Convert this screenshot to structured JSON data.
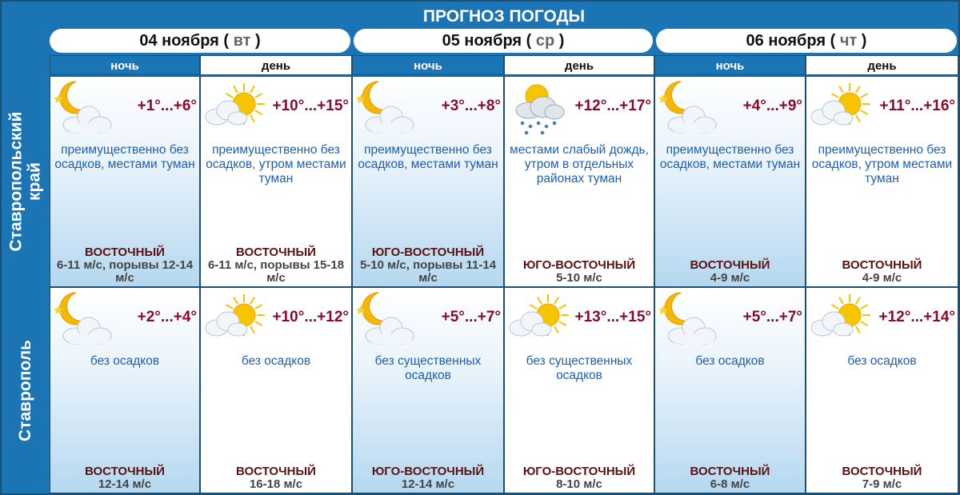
{
  "title": "ПРОГНОЗ ПОГОДЫ",
  "days": [
    {
      "date": "04 ноября",
      "weekday": "вт"
    },
    {
      "date": "05 ноября",
      "weekday": "ср"
    },
    {
      "date": "06 ноября",
      "weekday": "чт"
    }
  ],
  "periods": [
    "ночь",
    "день",
    "ночь",
    "день",
    "ночь",
    "день"
  ],
  "rows": [
    {
      "label": "Ставропольский край",
      "label1": "Ставропольский",
      "label2": "край",
      "cells": [
        {
          "icon": "moon-cloud",
          "temp": "+1°...+6°",
          "desc": "преимущественно без осадков, местами туман",
          "wind_dir": "ВОСТОЧНЫЙ",
          "wind_speed": "6-11 м/с, порывы 12-14 м/с"
        },
        {
          "icon": "sun-cloud",
          "temp": "+10°...+15°",
          "desc": "преимущественно без осадков, утром местами туман",
          "wind_dir": "ВОСТОЧНЫЙ",
          "wind_speed": "6-11 м/с, порывы 15-18 м/с"
        },
        {
          "icon": "moon-cloud",
          "temp": "+3°...+8°",
          "desc": "преимущественно без осадков, местами туман",
          "wind_dir": "ЮГО-ВОСТОЧНЫЙ",
          "wind_speed": "5-10 м/с, порывы 11-14 м/с"
        },
        {
          "icon": "sun-cloud-rain",
          "temp": "+12°...+17°",
          "desc": "местами слабый дождь, утром в отдельных районах туман",
          "wind_dir": "ЮГО-ВОСТОЧНЫЙ",
          "wind_speed": "5-10 м/с"
        },
        {
          "icon": "moon-cloud",
          "temp": "+4°...+9°",
          "desc": "преимущественно без осадков, местами туман",
          "wind_dir": "ВОСТОЧНЫЙ",
          "wind_speed": "4-9 м/с"
        },
        {
          "icon": "sun-cloud",
          "temp": "+11°...+16°",
          "desc": "преимущественно без осадков, утром местами туман",
          "wind_dir": "ВОСТОЧНЫЙ",
          "wind_speed": "4-9 м/с"
        }
      ]
    },
    {
      "label": "Ставрополь",
      "label1": "Ставрополь",
      "label2": "",
      "cells": [
        {
          "icon": "moon-cloud",
          "temp": "+2°...+4°",
          "desc": "без осадков",
          "wind_dir": "ВОСТОЧНЫЙ",
          "wind_speed": "12-14 м/с"
        },
        {
          "icon": "sun-cloud",
          "temp": "+10°...+12°",
          "desc": "без осадков",
          "wind_dir": "ВОСТОЧНЫЙ",
          "wind_speed": "16-18 м/с"
        },
        {
          "icon": "moon-cloud",
          "temp": "+5°...+7°",
          "desc": "без существенных осадков",
          "wind_dir": "ЮГО-ВОСТОЧНЫЙ",
          "wind_speed": "12-14 м/с"
        },
        {
          "icon": "sun-cloud",
          "temp": "+13°...+15°",
          "desc": "без существенных осадков",
          "wind_dir": "ЮГО-ВОСТОЧНЫЙ",
          "wind_speed": "8-10 м/с"
        },
        {
          "icon": "moon-cloud",
          "temp": "+5°...+7°",
          "desc": "без осадков",
          "wind_dir": "ВОСТОЧНЫЙ",
          "wind_speed": "6-8 м/с"
        },
        {
          "icon": "sun-cloud",
          "temp": "+12°...+14°",
          "desc": "без осадков",
          "wind_dir": "ВОСТОЧНЫЙ",
          "wind_speed": "7-9 м/с"
        }
      ]
    }
  ],
  "colors": {
    "header_blue": "#1b75b5",
    "temp": "#8b0a2a",
    "desc": "#1b5fb5",
    "wind_dir": "#5a1212"
  }
}
